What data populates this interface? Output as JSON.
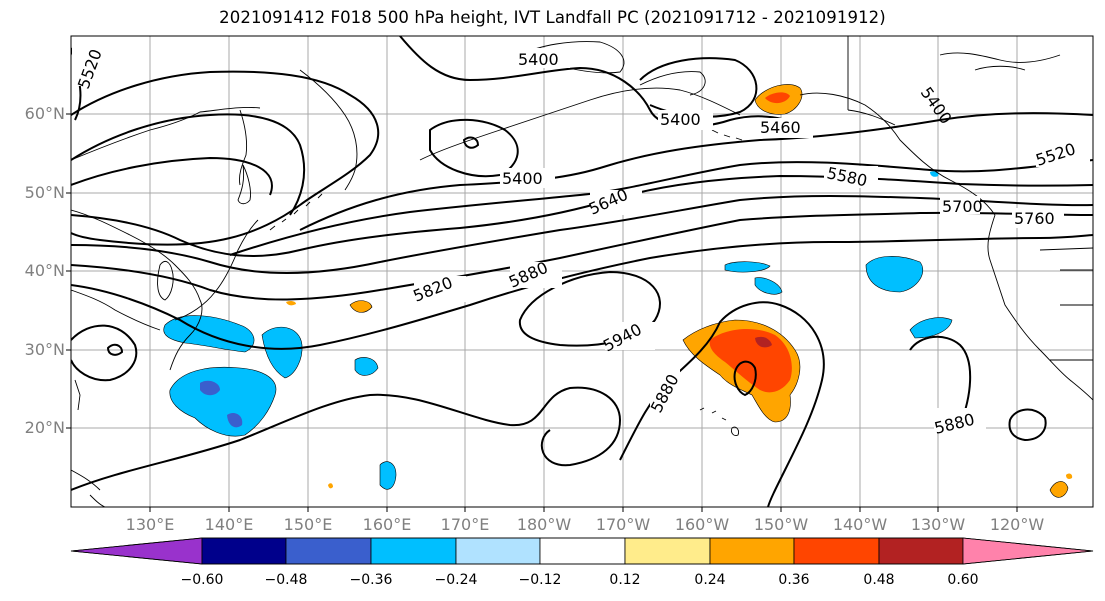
{
  "title": "2021091412 F018 500 hPa height, IVT Landfall PC (2021091712 - 2021091912)",
  "lat_labels": [
    "60°N",
    "50°N",
    "40°N",
    "30°N",
    "20°N"
  ],
  "lon_labels": [
    "130°E",
    "140°E",
    "150°E",
    "160°E",
    "170°E",
    "180°W",
    "170°W",
    "160°W",
    "150°W",
    "140°W",
    "130°W",
    "120°W"
  ],
  "contour_labels": [
    "5520",
    "5400",
    "5400",
    "5400",
    "5460",
    "5400",
    "5520",
    "5580",
    "5640",
    "5700",
    "5760",
    "5820",
    "5880",
    "5940",
    "5880",
    "5880"
  ],
  "colorbar": {
    "tick_labels": [
      "−0.60",
      "−0.48",
      "−0.36",
      "−0.24",
      "−0.12",
      "0.12",
      "0.24",
      "0.36",
      "0.48",
      "0.60"
    ],
    "colors": [
      "#9932cc",
      "#00008b",
      "#3a5fcd",
      "#00bfff",
      "#b0e2ff",
      "#ffffff",
      "#ffec8b",
      "#ffa500",
      "#ff4500",
      "#b22222",
      "#ff82ab"
    ]
  }
}
